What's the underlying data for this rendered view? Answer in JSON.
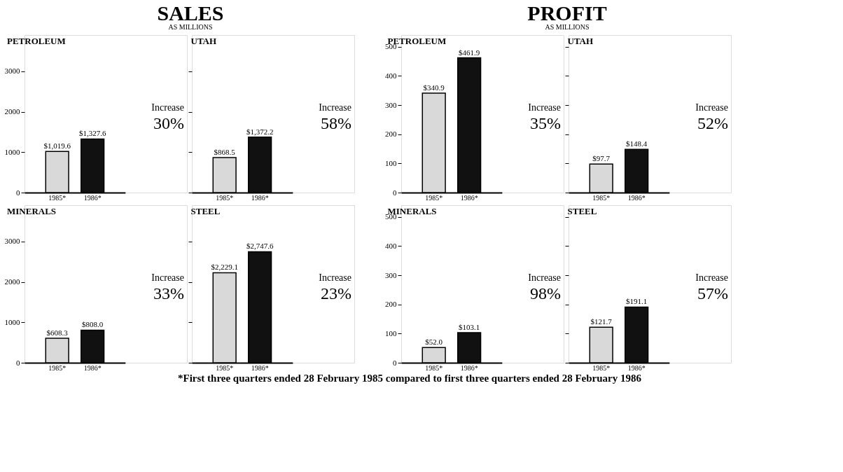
{
  "chart_data": [
    {
      "type": "other",
      "title": "SALES",
      "subtitle": "AS MILLIONS"
    },
    {
      "type": "bar",
      "title": "PETROLEUM",
      "categories": [
        "1985*",
        "1986*"
      ],
      "values": [
        1019.6,
        1327.6
      ],
      "colors": [
        "#d9d9d9",
        "#111111"
      ],
      "value_labels": [
        "$1,019.6",
        "$1,327.6"
      ],
      "ylim": [
        0,
        3900
      ],
      "yticks": [
        0,
        1000,
        2000,
        3000
      ],
      "annotations": [
        "Increase",
        "30%"
      ]
    },
    {
      "type": "bar",
      "title": "UTAH",
      "categories": [
        "1985*",
        "1986*"
      ],
      "values": [
        868.5,
        1372.2
      ],
      "colors": [
        "#d9d9d9",
        "#111111"
      ],
      "value_labels": [
        "$868.5",
        "$1,372.2"
      ],
      "ylim": [
        0,
        3900
      ],
      "yticks": [
        0,
        1000,
        2000,
        3000
      ],
      "tick_labels": "x",
      "annotations": [
        "Increase",
        "58%"
      ]
    },
    {
      "type": "bar",
      "title": "MINERALS",
      "categories": [
        "1985*",
        "1986*"
      ],
      "values": [
        608.3,
        808.0
      ],
      "colors": [
        "#d9d9d9",
        "#111111"
      ],
      "value_labels": [
        "$608.3",
        "$808.0"
      ],
      "ylim": [
        0,
        3900
      ],
      "yticks": [
        0,
        1000,
        2000,
        3000
      ],
      "annotations": [
        "Increase",
        "33%"
      ]
    },
    {
      "type": "bar",
      "title": "STEEL",
      "categories": [
        "1985*",
        "1986*"
      ],
      "values": [
        2229.1,
        2747.6
      ],
      "colors": [
        "#d9d9d9",
        "#111111"
      ],
      "value_labels": [
        "$2,229.1",
        "$2,747.6"
      ],
      "ylim": [
        0,
        3900
      ],
      "yticks": [
        0,
        1000,
        2000,
        3000
      ],
      "tick_labels": "x",
      "annotations": [
        "Increase",
        "23%"
      ]
    },
    {
      "type": "other",
      "title": "PROFIT",
      "subtitle": "AS MILLIONS"
    },
    {
      "type": "bar",
      "title": "PETROLEUM",
      "categories": [
        "1985*",
        "1986*"
      ],
      "values": [
        340.9,
        461.9
      ],
      "colors": [
        "#d9d9d9",
        "#111111"
      ],
      "value_labels": [
        "$340.9",
        "$461.9"
      ],
      "ylim": [
        0,
        540
      ],
      "yticks": [
        0,
        100,
        200,
        300,
        400,
        500
      ],
      "annotations": [
        "Increase",
        "35%"
      ]
    },
    {
      "type": "bar",
      "title": "UTAH",
      "categories": [
        "1985*",
        "1986*"
      ],
      "values": [
        97.7,
        148.4
      ],
      "colors": [
        "#d9d9d9",
        "#111111"
      ],
      "value_labels": [
        "$97.7",
        "$148.4"
      ],
      "ylim": [
        0,
        540
      ],
      "yticks": [
        0,
        100,
        200,
        300,
        400,
        500
      ],
      "tick_labels": "x",
      "annotations": [
        "Increase",
        "52%"
      ]
    },
    {
      "type": "bar",
      "title": "MINERALS",
      "categories": [
        "1985*",
        "1986*"
      ],
      "values": [
        52.0,
        103.1
      ],
      "colors": [
        "#d9d9d9",
        "#111111"
      ],
      "value_labels": [
        "$52.0",
        "$103.1"
      ],
      "ylim": [
        0,
        540
      ],
      "yticks": [
        0,
        100,
        200,
        300,
        400,
        500
      ],
      "annotations": [
        "Increase",
        "98%"
      ]
    },
    {
      "type": "bar",
      "title": "STEEL",
      "categories": [
        "1985*",
        "1986*"
      ],
      "values": [
        121.7,
        191.1
      ],
      "colors": [
        "#d9d9d9",
        "#111111"
      ],
      "value_labels": [
        "$121.7",
        "$191.1"
      ],
      "ylim": [
        0,
        540
      ],
      "yticks": [
        0,
        100,
        200,
        300,
        400,
        500
      ],
      "tick_labels": "x",
      "annotations": [
        "Increase",
        "57%"
      ]
    },
    {
      "type": "other",
      "annotations": [
        "*First three quarters ended 28 February 1985 compared to first three quarters ended 28 February 1986"
      ]
    }
  ]
}
